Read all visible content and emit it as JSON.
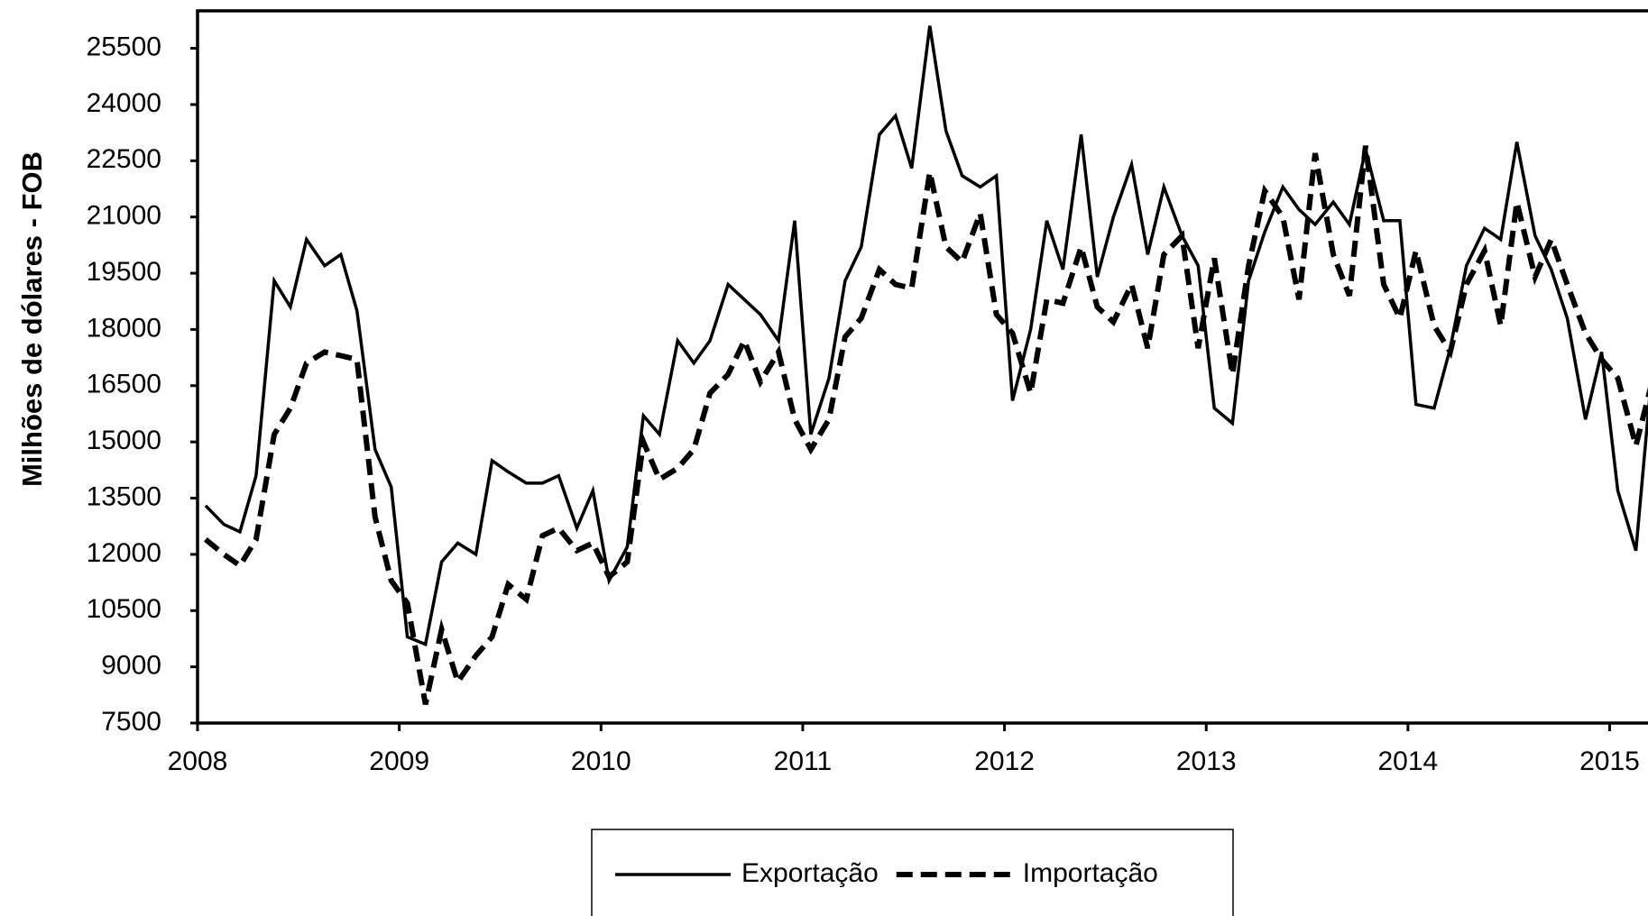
{
  "chart_data": {
    "type": "line",
    "y_label": "Milhões de dólares - FOB",
    "x": [
      2008.04,
      2008.13,
      2008.21,
      2008.29,
      2008.38,
      2008.46,
      2008.54,
      2008.63,
      2008.71,
      2008.79,
      2008.88,
      2008.96,
      2009.04,
      2009.13,
      2009.21,
      2009.29,
      2009.38,
      2009.46,
      2009.54,
      2009.63,
      2009.71,
      2009.79,
      2009.88,
      2009.96,
      2010.04,
      2010.13,
      2010.21,
      2010.29,
      2010.38,
      2010.46,
      2010.54,
      2010.63,
      2010.71,
      2010.79,
      2010.88,
      2010.96,
      2011.04,
      2011.13,
      2011.21,
      2011.29,
      2011.38,
      2011.46,
      2011.54,
      2011.63,
      2011.71,
      2011.79,
      2011.88,
      2011.96,
      2012.04,
      2012.13,
      2012.21,
      2012.29,
      2012.38,
      2012.46,
      2012.54,
      2012.63,
      2012.71,
      2012.79,
      2012.88,
      2012.96,
      2013.04,
      2013.13,
      2013.21,
      2013.29,
      2013.38,
      2013.46,
      2013.54,
      2013.63,
      2013.71,
      2013.79,
      2013.88,
      2013.96,
      2014.04,
      2014.13,
      2014.21,
      2014.29,
      2014.38,
      2014.46,
      2014.54,
      2014.63,
      2014.71,
      2014.79,
      2014.88,
      2014.96,
      2015.04,
      2015.13,
      2015.21
    ],
    "series": [
      {
        "name": "Exportação",
        "color": "#000000",
        "style": "solid",
        "values": [
          13300,
          12800,
          12600,
          14100,
          19300,
          18600,
          20400,
          19700,
          20000,
          18500,
          14800,
          13800,
          9800,
          9600,
          11800,
          12300,
          12000,
          14500,
          14200,
          13900,
          13900,
          14100,
          12700,
          13700,
          11300,
          12200,
          15700,
          15200,
          17700,
          17100,
          17700,
          19200,
          18800,
          18400,
          17700,
          20900,
          15200,
          16700,
          19300,
          20200,
          23200,
          23700,
          22300,
          26100,
          23300,
          22100,
          21800,
          22100,
          16100,
          18000,
          20900,
          19600,
          23200,
          19400,
          21000,
          22400,
          20000,
          21800,
          20500,
          19700,
          15900,
          15500,
          19300,
          20600,
          21800,
          21200,
          20800,
          21400,
          20800,
          22800,
          20900,
          20900,
          16000,
          15900,
          17500,
          19700,
          20700,
          20400,
          23000,
          20500,
          19600,
          18300,
          15600,
          17400,
          13700,
          12100,
          16900
        ]
      },
      {
        "name": "Importação",
        "color": "#000000",
        "style": "dashed",
        "values": [
          12400,
          12000,
          11700,
          12400,
          15200,
          15900,
          17100,
          17400,
          17300,
          17200,
          13000,
          11300,
          10700,
          8000,
          10000,
          8600,
          9300,
          9800,
          11200,
          10800,
          12500,
          12700,
          12100,
          12300,
          11400,
          11800,
          15000,
          14000,
          14300,
          14800,
          16300,
          16800,
          17700,
          16600,
          17400,
          15600,
          14800,
          15600,
          17800,
          18300,
          19600,
          19200,
          19100,
          22200,
          20200,
          19800,
          21100,
          18400,
          17900,
          16300,
          18800,
          18700,
          20200,
          18600,
          18200,
          19200,
          17500,
          20000,
          20500,
          17500,
          19900,
          16800,
          19700,
          21700,
          21000,
          18800,
          22700,
          20000,
          18900,
          22900,
          19200,
          18300,
          20100,
          18100,
          17400,
          19200,
          20100,
          18100,
          21400,
          19400,
          20400,
          19200,
          17900,
          17200,
          16700,
          14900,
          16600
        ]
      }
    ],
    "xlim": [
      2008,
      2015.19
    ],
    "xticks": [
      2008,
      2009,
      2010,
      2011,
      2012,
      2013,
      2014,
      2015
    ],
    "ylim": [
      7500,
      26500
    ],
    "yticks": [
      7500,
      9000,
      10500,
      12000,
      13500,
      15000,
      16500,
      18000,
      19500,
      21000,
      22500,
      24000,
      25500
    ],
    "legend": "bottom"
  }
}
